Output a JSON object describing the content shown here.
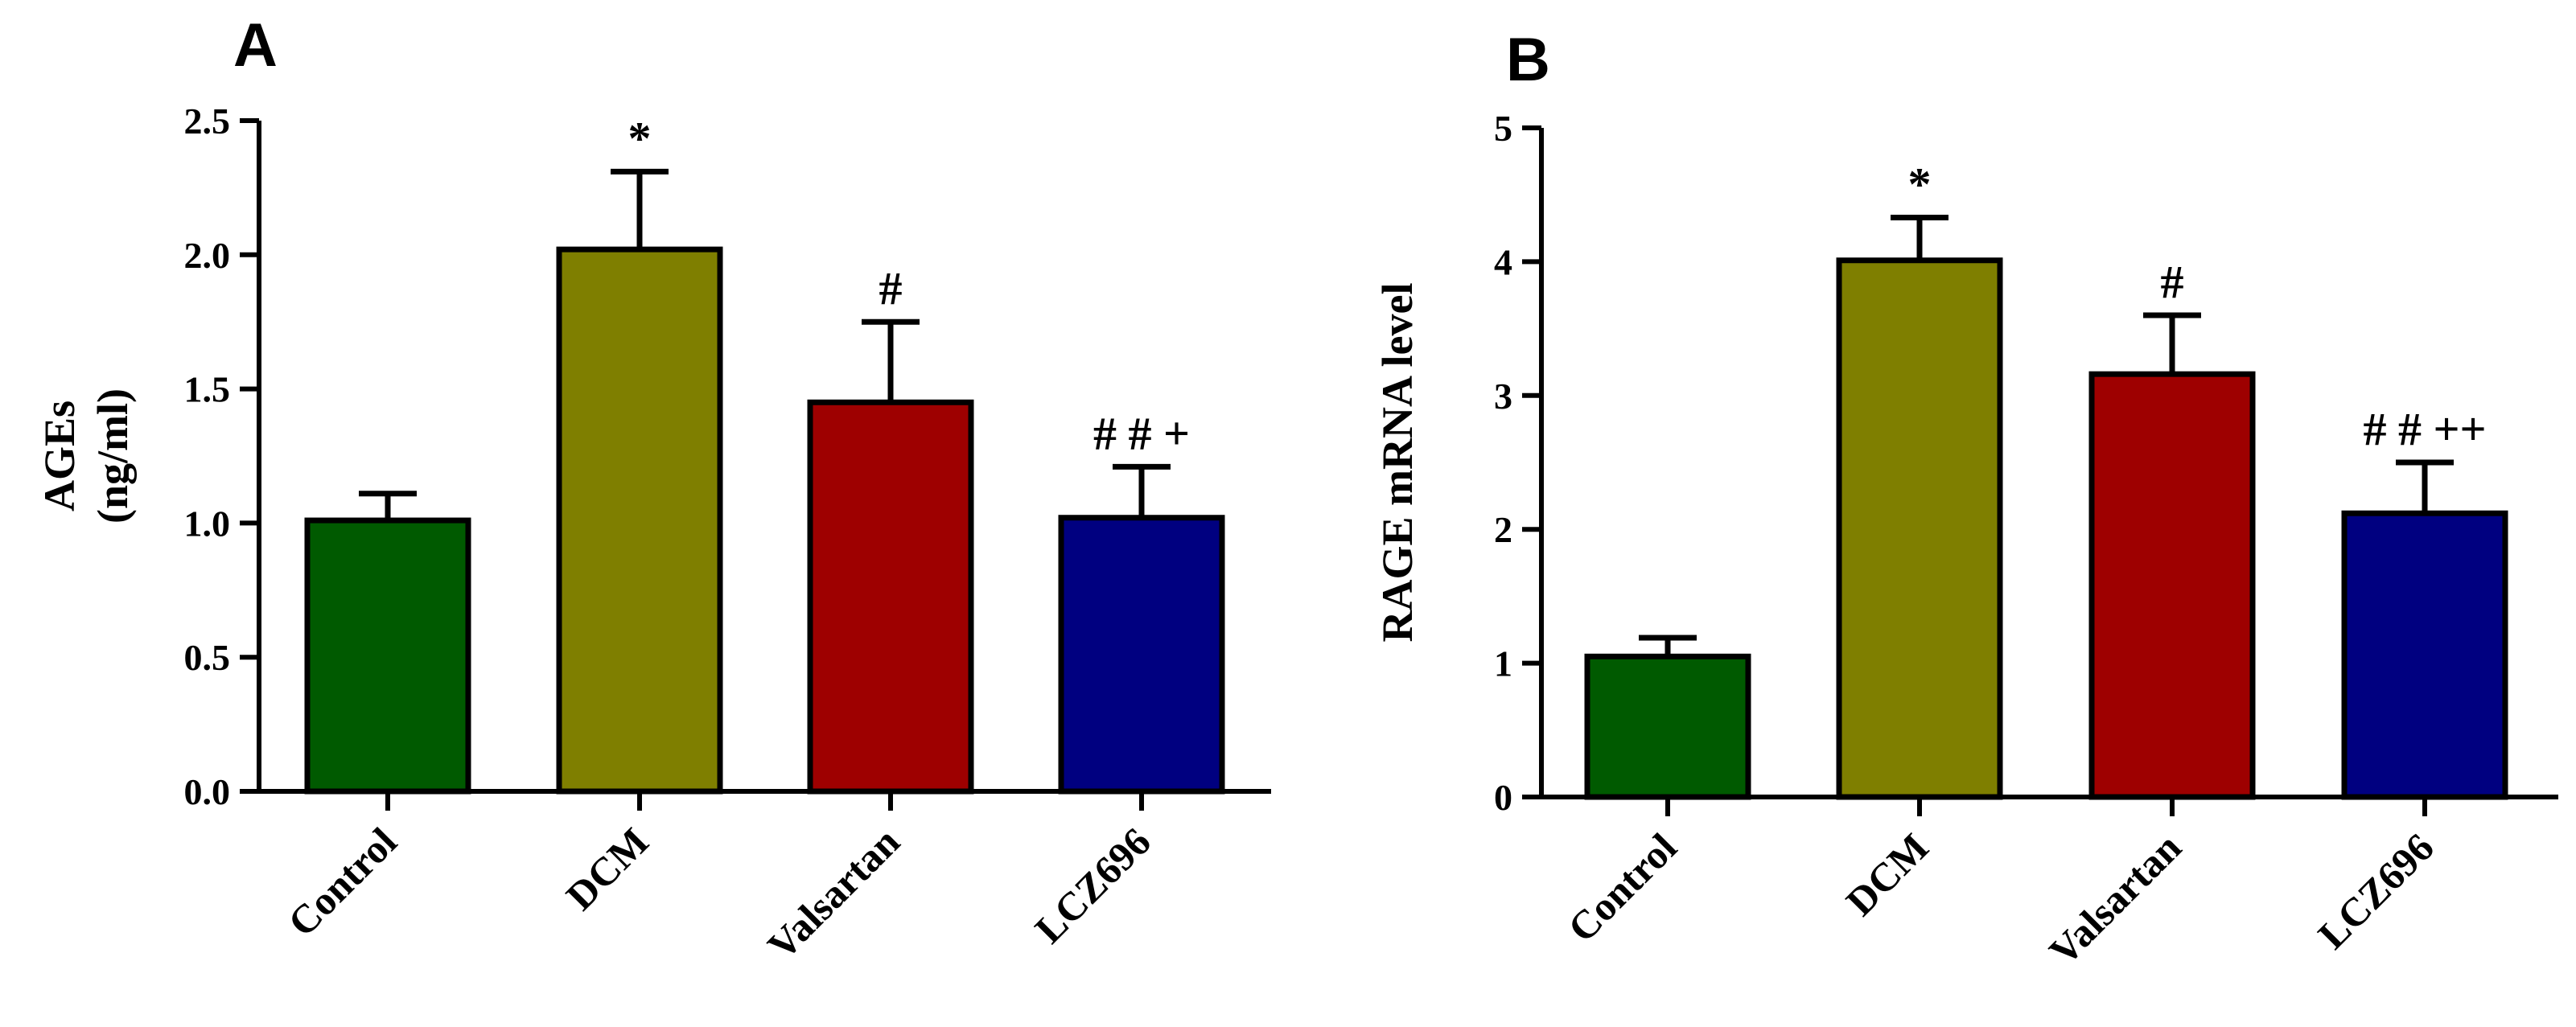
{
  "chart_data": [
    {
      "panel": "A",
      "type": "bar",
      "title": "",
      "xlabel": "",
      "ylabel_lines": [
        "AGEs",
        "(ng/ml)"
      ],
      "categories": [
        "Control",
        "DCM",
        "Valsartan",
        "LCZ696"
      ],
      "values": [
        1.01,
        2.02,
        1.45,
        1.02
      ],
      "errors": [
        0.1,
        0.29,
        0.3,
        0.19
      ],
      "annotations": [
        "",
        "*",
        "#",
        "# # +"
      ],
      "colors": [
        "#005a00",
        "#7f7f00",
        "#9e0000",
        "#000080"
      ],
      "ylim": [
        0,
        2.5
      ],
      "yticks": [
        0.0,
        0.5,
        1.0,
        1.5,
        2.0,
        2.5
      ],
      "ytick_labels": [
        "0.0",
        "0.5",
        "1.0",
        "1.5",
        "2.0",
        "2.5"
      ]
    },
    {
      "panel": "B",
      "type": "bar",
      "title": "",
      "xlabel": "",
      "ylabel_lines": [
        "RAGE mRNA level"
      ],
      "categories": [
        "Control",
        "DCM",
        "Valsartan",
        "LCZ696"
      ],
      "values": [
        1.05,
        4.01,
        3.16,
        2.12
      ],
      "errors": [
        0.14,
        0.32,
        0.44,
        0.38
      ],
      "annotations": [
        "",
        "*",
        "#",
        "# # ++"
      ],
      "colors": [
        "#005a00",
        "#7f7f00",
        "#9e0000",
        "#000080"
      ],
      "ylim": [
        0,
        5
      ],
      "yticks": [
        0,
        1,
        2,
        3,
        4,
        5
      ],
      "ytick_labels": [
        "0",
        "1",
        "2",
        "3",
        "4",
        "5"
      ]
    }
  ]
}
